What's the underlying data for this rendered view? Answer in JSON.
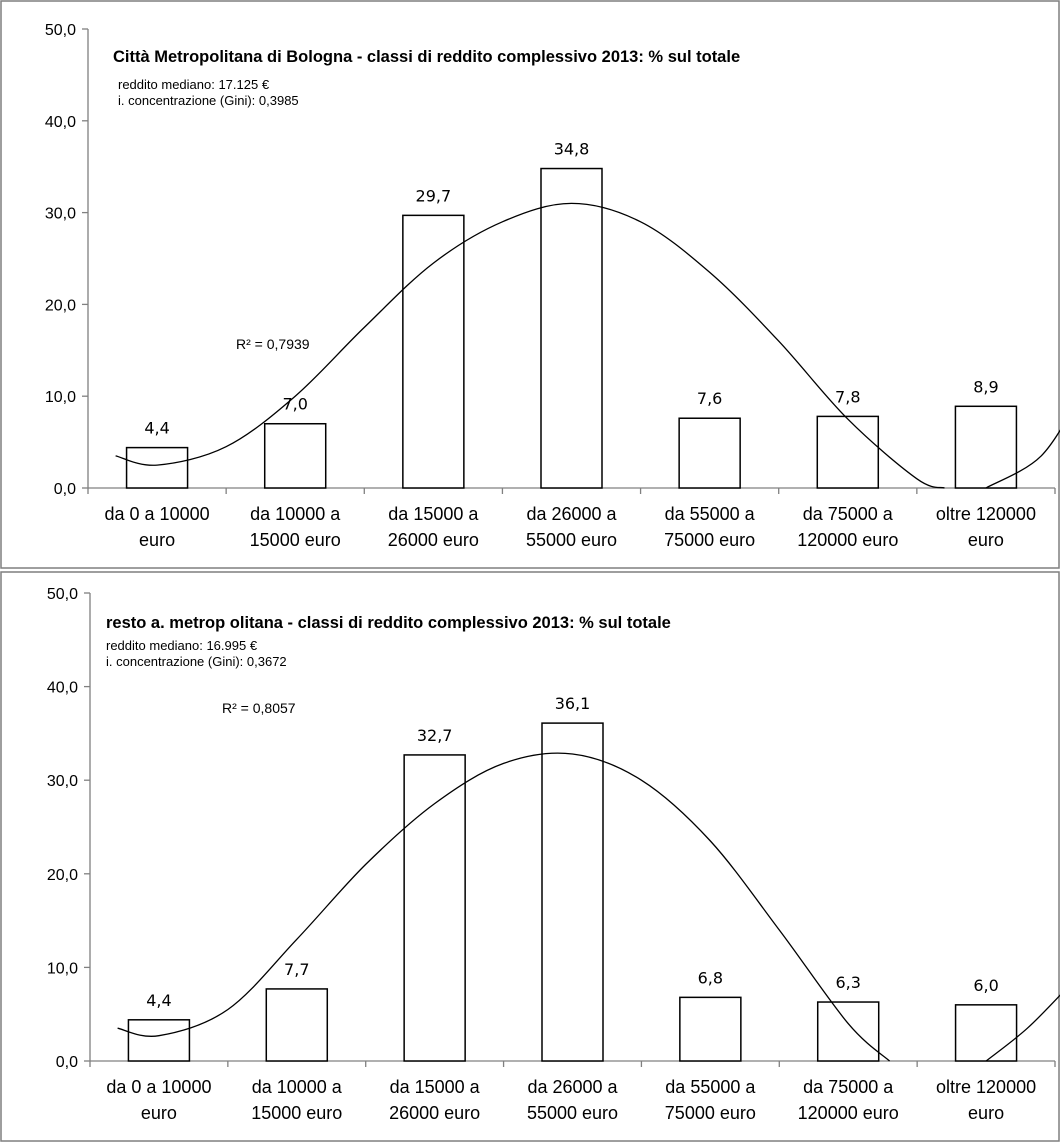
{
  "chart_data": [
    {
      "type": "bar",
      "title": "Città Metropolitana di Bologna - classi di reddito complessivo 2013: % sul totale",
      "subtitle_lines": [
        "reddito mediano:  17.125 €",
        "i. concentrazione (Gini):  0,3985"
      ],
      "categories": [
        [
          "da 0 a 10000",
          "euro"
        ],
        [
          "da 10000 a",
          "15000 euro"
        ],
        [
          "da 15000 a",
          "26000 euro"
        ],
        [
          "da 26000 a",
          "55000 euro"
        ],
        [
          "da 55000 a",
          "75000 euro"
        ],
        [
          "da 75000 a",
          "120000 euro"
        ],
        [
          "oltre 120000",
          "euro"
        ]
      ],
      "values": [
        4.4,
        7.0,
        29.7,
        34.8,
        7.6,
        7.8,
        8.9
      ],
      "value_labels": [
        "4,4",
        "7,0",
        "29,7",
        "34,8",
        "7,6",
        "7,8",
        "8,9"
      ],
      "ylim": [
        0,
        50
      ],
      "yticks": [
        "0,0",
        "10,0",
        "20,0",
        "30,0",
        "40,0",
        "50,0"
      ],
      "trendline": {
        "type": "polynomial",
        "r_squared_label": "R² = 0,7939",
        "points": [
          [
            0.7,
            3.5
          ],
          [
            1.0,
            2.5
          ],
          [
            1.5,
            4.5
          ],
          [
            2.0,
            10.0
          ],
          [
            2.5,
            17.5
          ],
          [
            3.0,
            24.5
          ],
          [
            3.5,
            29.0
          ],
          [
            4.0,
            31.0
          ],
          [
            4.5,
            29.0
          ],
          [
            5.0,
            23.5
          ],
          [
            5.5,
            16.0
          ],
          [
            6.0,
            7.5
          ],
          [
            6.5,
            1.0
          ],
          [
            6.7,
            0.0
          ]
        ],
        "points_tail": [
          [
            7.0,
            0.0
          ],
          [
            7.4,
            3.5
          ],
          [
            7.7,
            10.5
          ]
        ]
      },
      "xlabel": "",
      "ylabel": ""
    },
    {
      "type": "bar",
      "title": "resto a. metrop olitana  - classi di reddito complessivo 2013: % sul totale",
      "subtitle_lines": [
        "reddito mediano:  16.995 €",
        "i. concentrazione (Gini):  0,3672"
      ],
      "categories": [
        [
          "da 0 a 10000",
          "euro"
        ],
        [
          "da 10000 a",
          "15000 euro"
        ],
        [
          "da 15000 a",
          "26000 euro"
        ],
        [
          "da 26000 a",
          "55000 euro"
        ],
        [
          "da 55000 a",
          "75000 euro"
        ],
        [
          "da 75000 a",
          "120000 euro"
        ],
        [
          "oltre 120000",
          "euro"
        ]
      ],
      "values": [
        4.4,
        7.7,
        32.7,
        36.1,
        6.8,
        6.3,
        6.0
      ],
      "value_labels": [
        "4,4",
        "7,7",
        "32,7",
        "36,1",
        "6,8",
        "6,3",
        "6,0"
      ],
      "ylim": [
        0,
        50
      ],
      "yticks": [
        "0,0",
        "10,0",
        "20,0",
        "30,0",
        "40,0",
        "50,0"
      ],
      "trendline": {
        "type": "polynomial",
        "r_squared_label": "R² = 0,8057",
        "points": [
          [
            0.7,
            3.5
          ],
          [
            1.0,
            2.7
          ],
          [
            1.5,
            5.5
          ],
          [
            2.0,
            13.0
          ],
          [
            2.5,
            21.0
          ],
          [
            3.0,
            27.5
          ],
          [
            3.5,
            31.8
          ],
          [
            4.0,
            32.8
          ],
          [
            4.5,
            30.0
          ],
          [
            5.0,
            23.5
          ],
          [
            5.5,
            14.0
          ],
          [
            6.0,
            4.0
          ],
          [
            6.3,
            0.0
          ]
        ],
        "points_tail": [
          [
            7.0,
            0.0
          ],
          [
            7.3,
            3.5
          ],
          [
            7.6,
            8.0
          ]
        ]
      },
      "xlabel": "",
      "ylabel": ""
    }
  ]
}
